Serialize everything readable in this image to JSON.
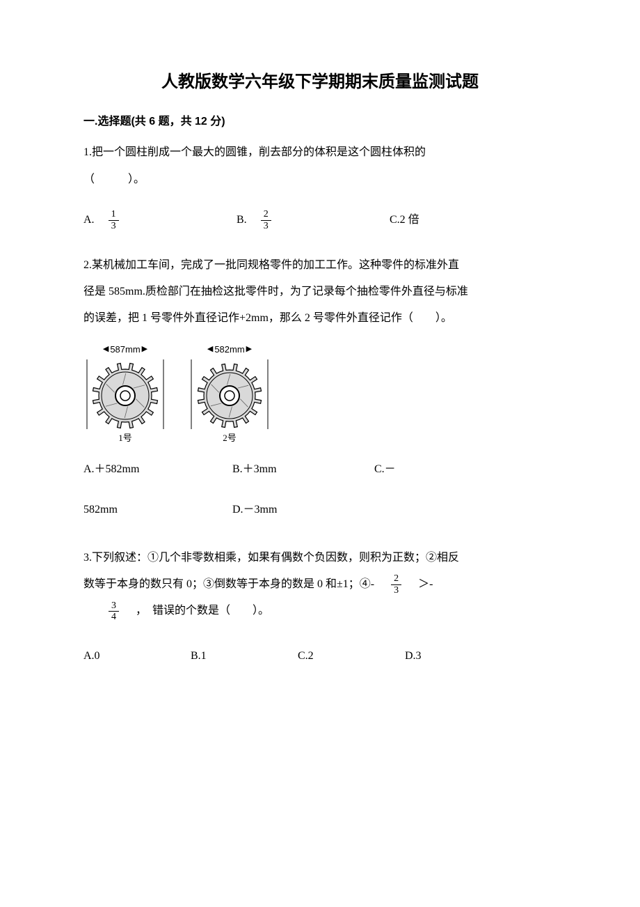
{
  "title": "人教版数学六年级下学期期末质量监测试题",
  "section1": {
    "header": "一.选择题(共 6 题，共 12 分)"
  },
  "q1": {
    "stem_l1": "1.把一个圆柱削成一个最大的圆锥，削去部分的体积是这个圆柱体积的",
    "stem_l2": "（　　　）。",
    "optA_label": "A.　",
    "optA_num": "1",
    "optA_den": "3",
    "optB_label": "B.　",
    "optB_num": "2",
    "optB_den": "3",
    "optC": "C.2 倍"
  },
  "q2": {
    "stem_l1": "2.某机械加工车间，完成了一批同规格零件的加工工作。这种零件的标准外直",
    "stem_l2": "径是 585mm.质检部门在抽检这批零件时，为了记录每个抽检零件外直径与标准",
    "stem_l3": "的误差，把 1 号零件外直径记作+2mm，那么 2 号零件外直径记作（　　）。",
    "gear1_dim": "587mm",
    "gear1_label": "1号",
    "gear2_dim": "582mm",
    "gear2_label": "2号",
    "optA": "A.＋582mm",
    "optB": "B.＋3mm",
    "optC": "C.－",
    "line2_582": "582mm",
    "optD": "D.－3mm"
  },
  "q3": {
    "stem_l1": "3.下列叙述：①几个非零数相乘，如果有偶数个负因数，则积为正数；②相反",
    "stem_l2a": "数等于本身的数只有 0；③倒数等于本身的数是 0 和±1；④-　",
    "frac1_num": "2",
    "frac1_den": "3",
    "stem_l2b": "　＞-",
    "frac2_num": "3",
    "frac2_den": "4",
    "stem_l3": "　，　错误的个数是（　　）。",
    "optA": "A.0",
    "optB": "B.1",
    "optC": "C.2",
    "optD": "D.3"
  },
  "gear": {
    "fill": "#d9d9d9",
    "stroke": "#000000",
    "hatch": "#666666"
  }
}
